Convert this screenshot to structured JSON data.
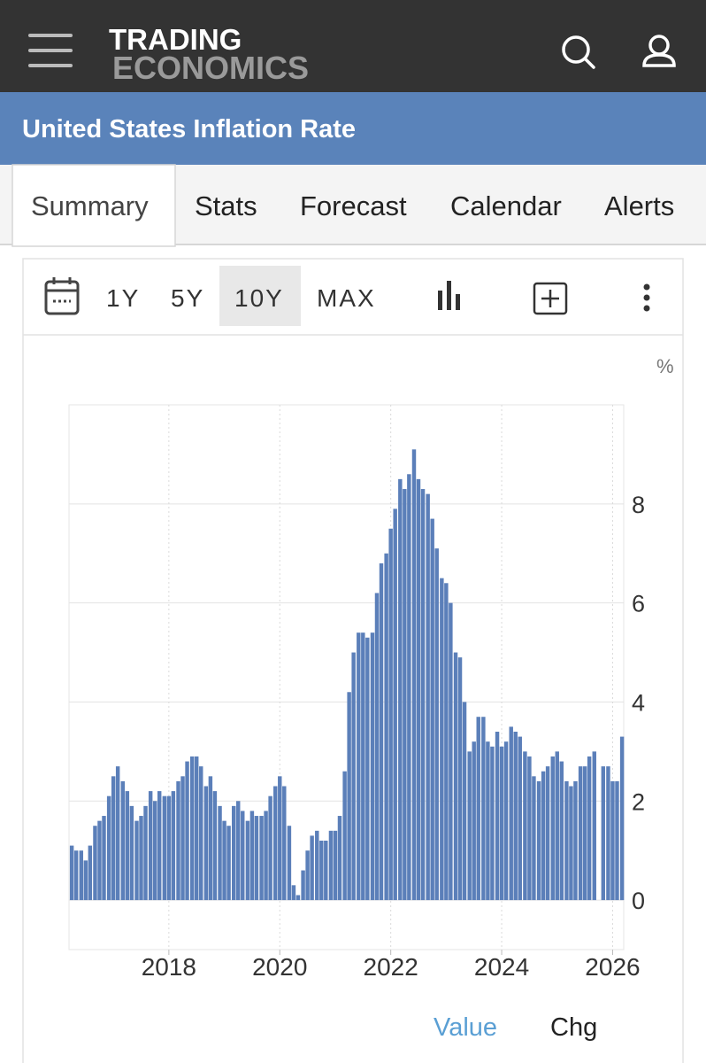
{
  "header": {
    "logo_top": "TRADING",
    "logo_bottom": "ECONOMICS"
  },
  "title": "United States Inflation Rate",
  "tabs": [
    "Summary",
    "Stats",
    "Forecast",
    "Calendar",
    "Alerts"
  ],
  "ranges": [
    "1Y",
    "5Y",
    "10Y",
    "MAX"
  ],
  "chart_data": {
    "type": "bar",
    "y_label": "%",
    "color": "#5b7fb9",
    "grid": true,
    "xlim": [
      2016.2,
      2026.2
    ],
    "ylim": [
      -1,
      10
    ],
    "xticks": [
      2018,
      2020,
      2022,
      2024,
      2026
    ],
    "yticks": [
      0,
      2,
      4,
      6,
      8
    ],
    "x": [
      2016.25,
      2016.33,
      2016.42,
      2016.5,
      2016.58,
      2016.67,
      2016.75,
      2016.83,
      2016.92,
      2017,
      2017.08,
      2017.17,
      2017.25,
      2017.33,
      2017.42,
      2017.5,
      2017.58,
      2017.67,
      2017.75,
      2017.83,
      2017.92,
      2018,
      2018.08,
      2018.17,
      2018.25,
      2018.33,
      2018.42,
      2018.5,
      2018.58,
      2018.67,
      2018.75,
      2018.83,
      2018.92,
      2019,
      2019.08,
      2019.17,
      2019.25,
      2019.33,
      2019.42,
      2019.5,
      2019.58,
      2019.67,
      2019.75,
      2019.83,
      2019.92,
      2020,
      2020.08,
      2020.17,
      2020.25,
      2020.33,
      2020.42,
      2020.5,
      2020.58,
      2020.67,
      2020.75,
      2020.83,
      2020.92,
      2021,
      2021.08,
      2021.17,
      2021.25,
      2021.33,
      2021.42,
      2021.5,
      2021.58,
      2021.67,
      2021.75,
      2021.83,
      2021.92,
      2022,
      2022.08,
      2022.17,
      2022.25,
      2022.33,
      2022.42,
      2022.5,
      2022.58,
      2022.67,
      2022.75,
      2022.83,
      2022.92,
      2023,
      2023.08,
      2023.17,
      2023.25,
      2023.33,
      2023.42,
      2023.5,
      2023.58,
      2023.67,
      2023.75,
      2023.83,
      2023.92,
      2024,
      2024.08,
      2024.17,
      2024.25,
      2024.33,
      2024.42,
      2024.5,
      2024.58,
      2024.67,
      2024.75,
      2024.83,
      2024.92,
      2025,
      2025.08,
      2025.17,
      2025.25,
      2025.33,
      2025.42,
      2025.5,
      2025.58,
      2025.67,
      2025.75,
      2025.83,
      2025.92,
      2026,
      2026.08,
      2026.17
    ],
    "values": [
      1.1,
      1.0,
      1.0,
      0.8,
      1.1,
      1.5,
      1.6,
      1.7,
      2.1,
      2.5,
      2.7,
      2.4,
      2.2,
      1.9,
      1.6,
      1.7,
      1.9,
      2.2,
      2.0,
      2.2,
      2.1,
      2.1,
      2.2,
      2.4,
      2.5,
      2.8,
      2.9,
      2.9,
      2.7,
      2.3,
      2.5,
      2.2,
      1.9,
      1.6,
      1.5,
      1.9,
      2.0,
      1.8,
      1.6,
      1.8,
      1.7,
      1.7,
      1.8,
      2.1,
      2.3,
      2.5,
      2.3,
      1.5,
      0.3,
      0.1,
      0.6,
      1.0,
      1.3,
      1.4,
      1.2,
      1.2,
      1.4,
      1.4,
      1.7,
      2.6,
      4.2,
      5.0,
      5.4,
      5.4,
      5.3,
      5.4,
      6.2,
      6.8,
      7.0,
      7.5,
      7.9,
      8.5,
      8.3,
      8.6,
      9.1,
      8.5,
      8.3,
      8.2,
      7.7,
      7.1,
      6.5,
      6.4,
      6.0,
      5.0,
      4.9,
      4.0,
      3.0,
      3.2,
      3.7,
      3.7,
      3.2,
      3.1,
      3.4,
      3.1,
      3.2,
      3.5,
      3.4,
      3.3,
      3.0,
      2.9,
      2.5,
      2.4,
      2.6,
      2.7,
      2.9,
      3.0,
      2.8,
      2.4,
      2.3,
      2.4,
      2.7,
      2.7,
      2.9,
      3.0,
      null,
      2.7,
      2.7,
      2.4,
      2.4,
      3.3
    ]
  },
  "footer": [
    "Value",
    "Chg"
  ]
}
